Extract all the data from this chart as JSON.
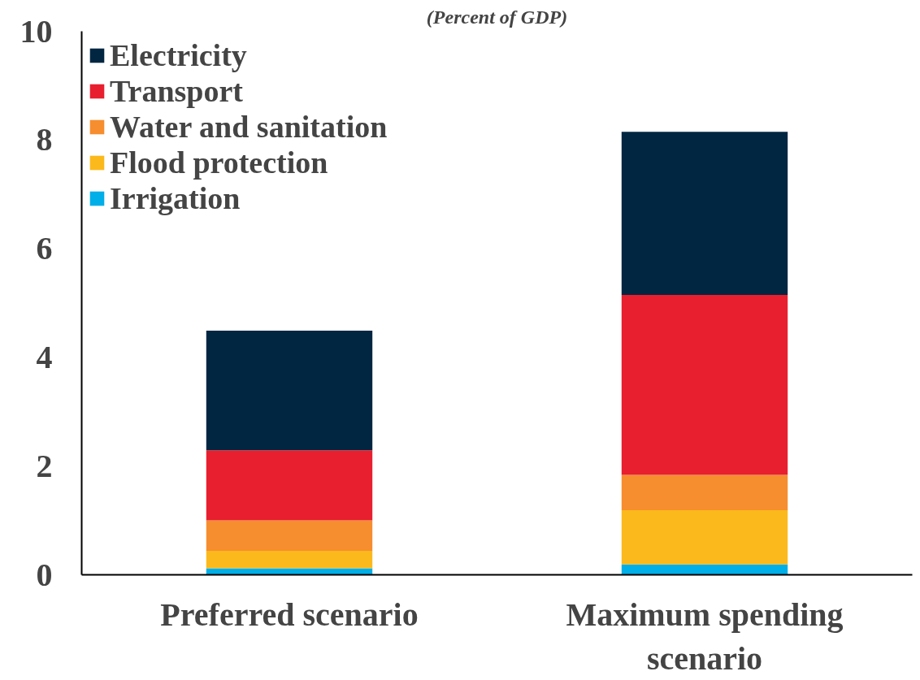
{
  "chart_data": {
    "type": "bar",
    "stacked": true,
    "title": "(Percent of GDP)",
    "categories": [
      "Preferred scenario",
      "Maximum spending scenario"
    ],
    "series": [
      {
        "name": "Irrigation",
        "color": "#00aee8",
        "values": [
          0.12,
          0.19
        ]
      },
      {
        "name": "Flood protection",
        "color": "#fbb91b",
        "values": [
          0.32,
          1.0
        ]
      },
      {
        "name": "Water and sanitation",
        "color": "#f68d2e",
        "values": [
          0.56,
          0.65
        ]
      },
      {
        "name": "Transport",
        "color": "#e81f2e",
        "values": [
          1.29,
          3.31
        ]
      },
      {
        "name": "Electricity",
        "color": "#002642",
        "values": [
          2.2,
          3.0
        ]
      }
    ],
    "ylim": [
      0,
      10
    ],
    "yticks": [
      0,
      2,
      4,
      6,
      8,
      10
    ],
    "grid": false,
    "legend": "top left"
  }
}
